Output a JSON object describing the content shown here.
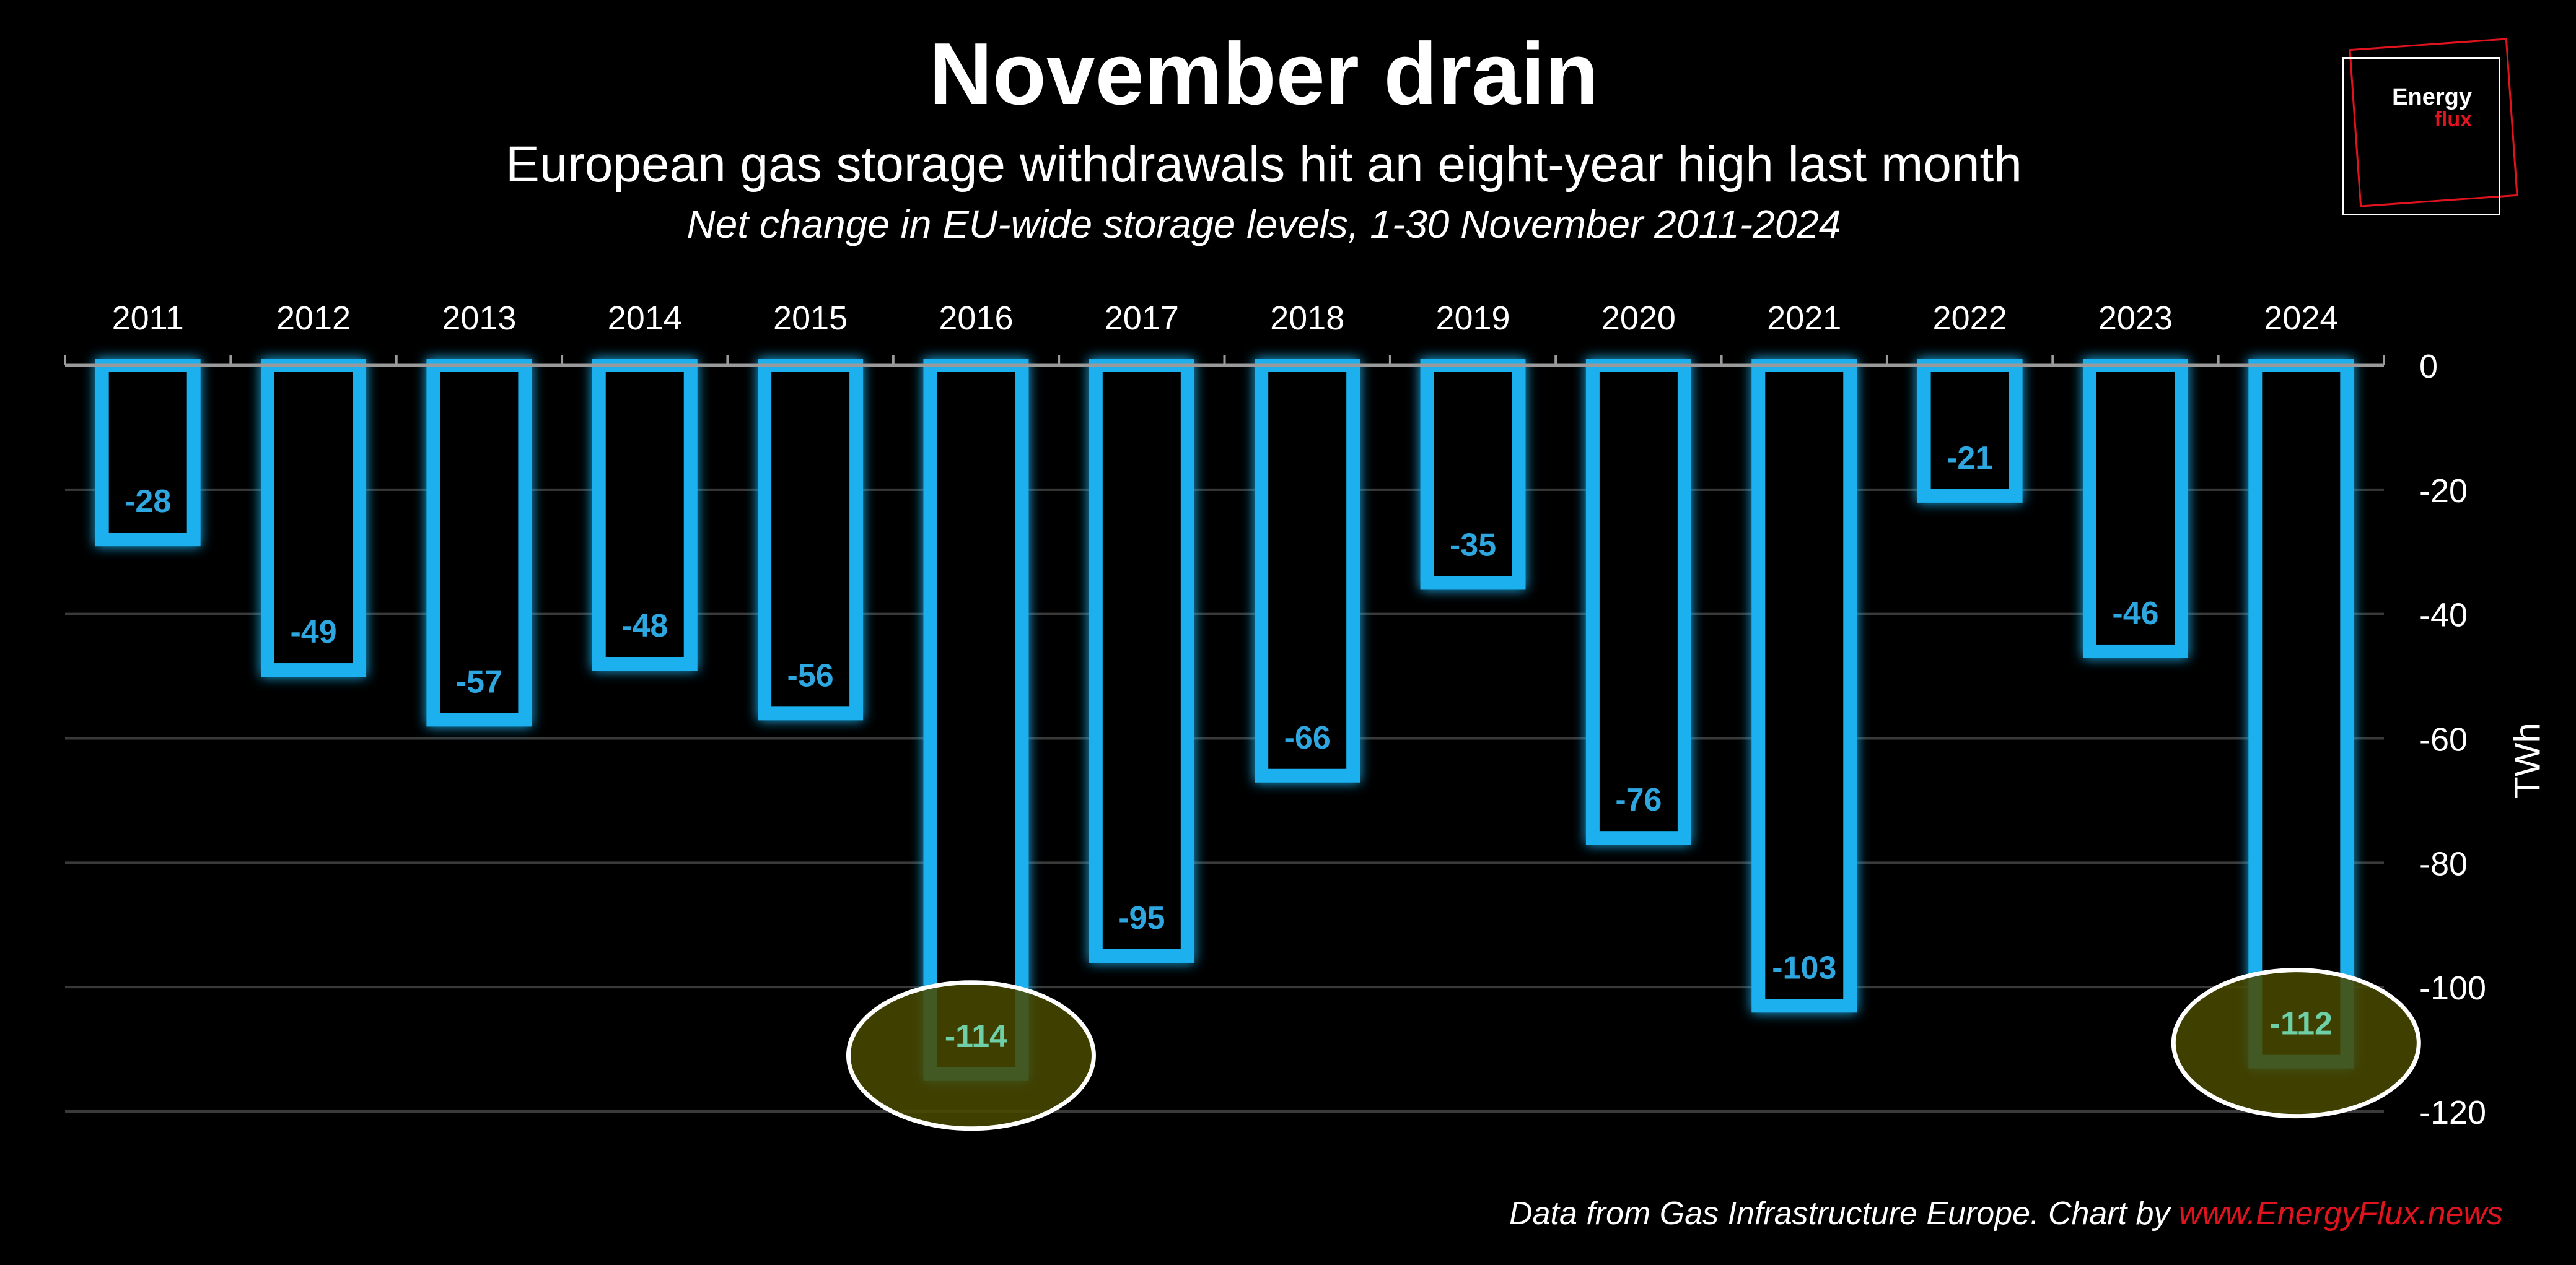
{
  "title": "November drain",
  "subtitle": "European gas storage withdrawals hit an eight-year high last month",
  "subsubtitle": "Net change in EU-wide storage levels, 1-30 November 2011-2024",
  "logo": {
    "line1": "Energy",
    "line2": "flux"
  },
  "source": {
    "text": "Data from Gas Infrastructure Europe. Chart by ",
    "brand": "www.EnergyFlux.news"
  },
  "colors": {
    "bar_glow": "#1ab0ee",
    "label": "#2ea7e0",
    "highlight_label": "#6fd0a8",
    "highlight_fill": "#4a4a00",
    "brand_red": "#e0141e"
  },
  "chart_data": {
    "type": "bar",
    "categories": [
      "2011",
      "2012",
      "2013",
      "2014",
      "2015",
      "2016",
      "2017",
      "2018",
      "2019",
      "2020",
      "2021",
      "2022",
      "2023",
      "2024"
    ],
    "values": [
      -28,
      -49,
      -57,
      -48,
      -56,
      -114,
      -95,
      -66,
      -35,
      -76,
      -103,
      -21,
      -46,
      -112
    ],
    "value_labels": [
      "-28",
      "-49",
      "-57",
      "-48",
      "-56",
      "-114",
      "-95",
      "-66",
      "-35",
      "-76",
      "-103",
      "-21",
      "-46",
      "-112"
    ],
    "ylabel": "TWh",
    "ylim": [
      -120,
      0
    ],
    "yticks": [
      "0",
      "-20",
      "-40",
      "-60",
      "-80",
      "-100",
      "-120"
    ],
    "highlighted": [
      "2016",
      "2024"
    ],
    "grid": true,
    "x_axis_position": "top",
    "y_axis_position": "right"
  }
}
